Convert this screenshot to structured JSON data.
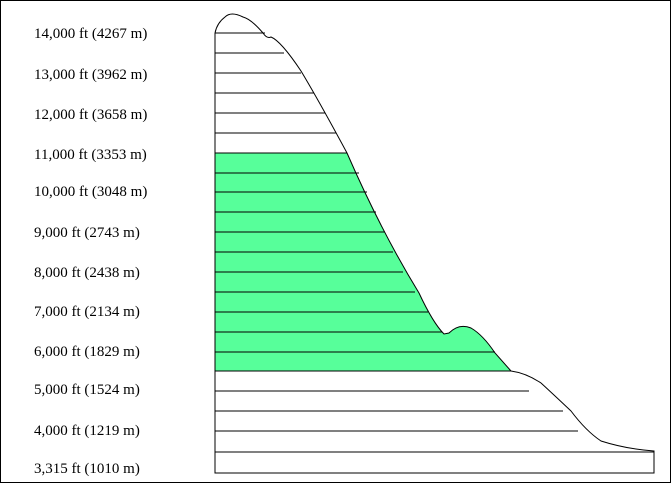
{
  "title": "",
  "elevation_labels": [
    "14,000 ft (4267 m)",
    "13,000 ft (3962 m)",
    "12,000 ft (3658 m)",
    "11,000 ft (3353 m)",
    "10,000 ft (3048 m)",
    "9,000 ft (2743 m)",
    "8,000 ft (2438 m)",
    "7,000 ft (2134 m)",
    "6,000 ft (1829 m)",
    "5,000 ft (1524 m)",
    "4,000 ft (1219 m)",
    "3,315 ft (1010 m)"
  ],
  "highlight_band": {
    "from_ft": 5500,
    "to_ft": 11000,
    "color": "#57ff9a"
  },
  "outline_color": "#000000",
  "background_color": "#ffffff"
}
